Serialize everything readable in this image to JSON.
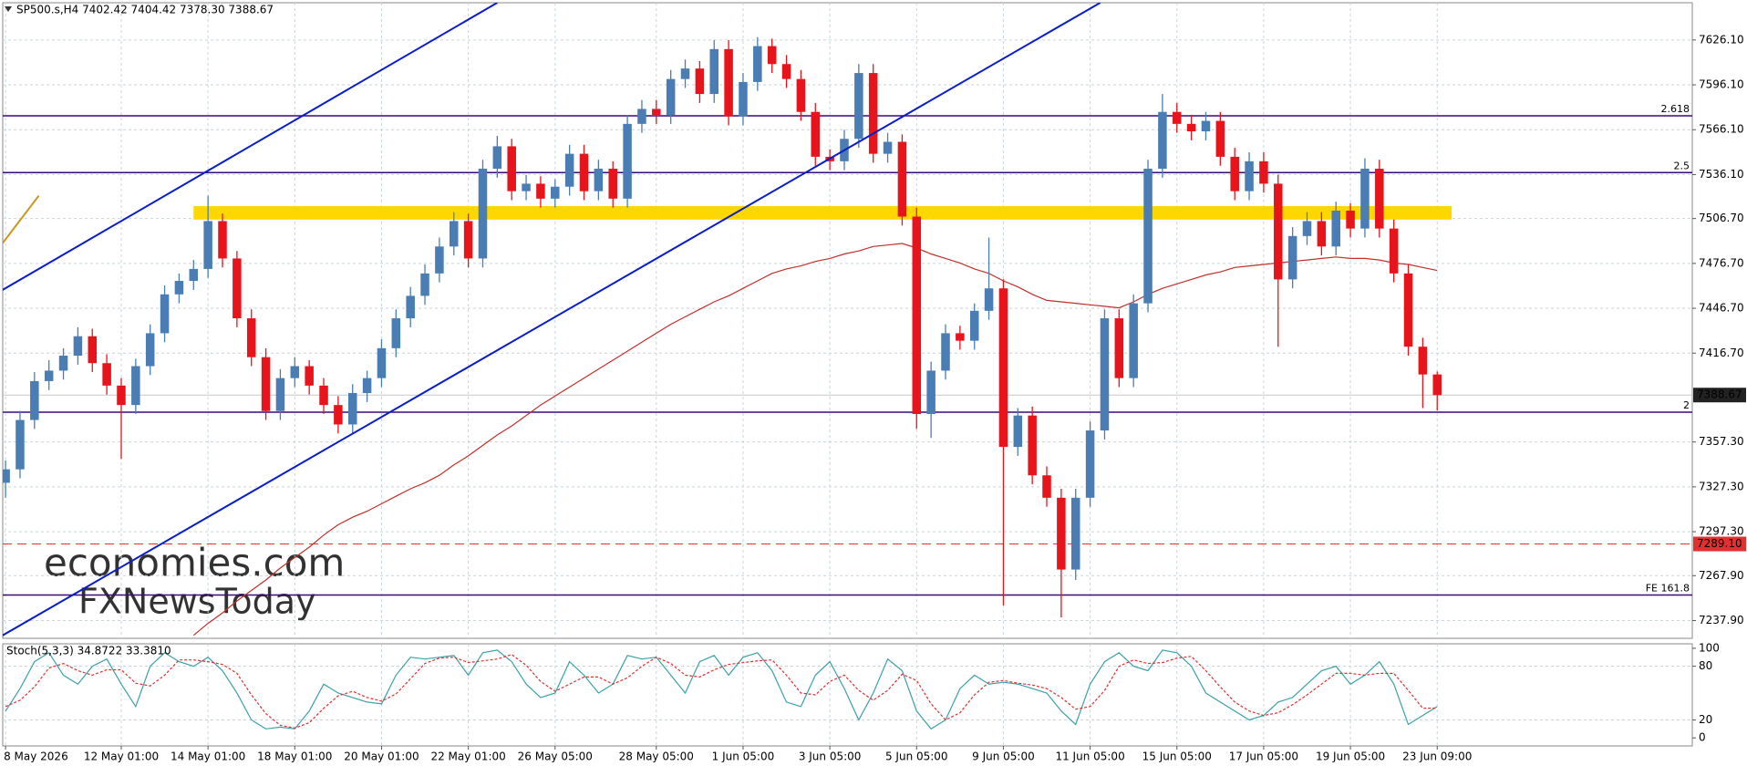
{
  "chart_data": {
    "type": "candlestick",
    "title": "SP500.s,H4  7402.42 7404.42 7378.30 7388.67",
    "categories": [
      "8 May 2026",
      null,
      null,
      null,
      null,
      null,
      null,
      null,
      "12 May 01:00",
      null,
      null,
      null,
      null,
      null,
      "14 May 01:00",
      null,
      null,
      null,
      null,
      null,
      "18 May 01:00",
      null,
      null,
      null,
      null,
      null,
      "20 May 01:00",
      null,
      null,
      null,
      null,
      null,
      "22 May 01:00",
      null,
      null,
      null,
      null,
      null,
      "26 May 05:00",
      null,
      null,
      null,
      null,
      null,
      null,
      "28 May 05:00",
      null,
      null,
      null,
      null,
      null,
      "1 Jun 05:00",
      null,
      null,
      null,
      null,
      null,
      "3 Jun 05:00",
      null,
      null,
      null,
      null,
      null,
      "5 Jun 05:00",
      null,
      null,
      null,
      null,
      null,
      "9 Jun 05:00",
      null,
      null,
      null,
      null,
      null,
      "11 Jun 05:00",
      null,
      null,
      null,
      null,
      null,
      "15 Jun 05:00",
      null,
      null,
      null,
      null,
      null,
      "17 Jun 05:00",
      null,
      null,
      null,
      null,
      null,
      "19 Jun 05:00",
      null,
      null,
      null,
      null,
      null,
      "23 Jun 09:00"
    ],
    "up_color": "#4a7db4",
    "down_color": "#e8141c",
    "open": [
      7330,
      7339,
      7372,
      7398,
      7405,
      7415,
      7428,
      7410,
      7395,
      7382,
      7408,
      7430,
      7456,
      7465,
      7473,
      7505,
      7480,
      7440,
      7414,
      7378,
      7400,
      7408,
      7395,
      7382,
      7369,
      7390,
      7400,
      7420,
      7440,
      7455,
      7470,
      7488,
      7505,
      7480,
      7540,
      7555,
      7525,
      7530,
      7520,
      7528,
      7550,
      7525,
      7540,
      7520,
      7570,
      7580,
      7576,
      7600,
      7607,
      7590,
      7620,
      7575,
      7598,
      7622,
      7610,
      7600,
      7578,
      7548,
      7545,
      7560,
      7604,
      7550,
      7558,
      7508,
      7376,
      7405,
      7430,
      7425,
      7445,
      7460,
      7354,
      7375,
      7335,
      7320,
      7272,
      7320,
      7365,
      7440,
      7400,
      7450,
      7540,
      7578,
      7570,
      7565,
      7572,
      7548,
      7525,
      7545,
      7530,
      7466,
      7495,
      7505,
      7488,
      7512,
      7500,
      7540,
      7500,
      7470,
      7421,
      7402.42
    ],
    "high": [
      7345,
      7378,
      7404,
      7412,
      7420,
      7434,
      7433,
      7416,
      7400,
      7413,
      7436,
      7462,
      7470,
      7479,
      7522,
      7510,
      7485,
      7446,
      7420,
      7406,
      7414,
      7412,
      7400,
      7388,
      7396,
      7405,
      7426,
      7446,
      7461,
      7476,
      7494,
      7511,
      7510,
      7546,
      7562,
      7560,
      7536,
      7535,
      7533,
      7556,
      7556,
      7546,
      7545,
      7576,
      7586,
      7586,
      7606,
      7613,
      7612,
      7626,
      7626,
      7604,
      7628,
      7627,
      7616,
      7606,
      7584,
      7553,
      7566,
      7610,
      7610,
      7564,
      7563,
      7514,
      7411,
      7436,
      7435,
      7450,
      7494,
      7466,
      7380,
      7381,
      7341,
      7326,
      7326,
      7371,
      7446,
      7446,
      7456,
      7546,
      7590,
      7584,
      7576,
      7578,
      7578,
      7554,
      7551,
      7551,
      7536,
      7501,
      7511,
      7511,
      7518,
      7517,
      7547,
      7546,
      7506,
      7476,
      7427,
      7404.42
    ],
    "low": [
      7320,
      7333,
      7366,
      7392,
      7399,
      7409,
      7404,
      7389,
      7346,
      7376,
      7402,
      7424,
      7450,
      7459,
      7467,
      7474,
      7434,
      7408,
      7372,
      7372,
      7394,
      7389,
      7376,
      7363,
      7363,
      7384,
      7394,
      7414,
      7434,
      7449,
      7464,
      7482,
      7474,
      7474,
      7534,
      7519,
      7519,
      7514,
      7514,
      7522,
      7519,
      7519,
      7514,
      7514,
      7564,
      7570,
      7570,
      7594,
      7584,
      7584,
      7569,
      7569,
      7592,
      7604,
      7594,
      7572,
      7542,
      7539,
      7539,
      7554,
      7544,
      7544,
      7502,
      7366,
      7360,
      7399,
      7419,
      7419,
      7439,
      7248,
      7348,
      7329,
      7314,
      7240,
      7265,
      7314,
      7359,
      7394,
      7394,
      7444,
      7534,
      7564,
      7559,
      7559,
      7542,
      7519,
      7519,
      7524,
      7421,
      7460,
      7489,
      7482,
      7482,
      7494,
      7494,
      7494,
      7464,
      7415,
      7380,
      7378.3
    ],
    "close": [
      7339,
      7372,
      7398,
      7405,
      7415,
      7428,
      7410,
      7395,
      7382,
      7408,
      7430,
      7456,
      7465,
      7473,
      7505,
      7480,
      7440,
      7414,
      7378,
      7400,
      7408,
      7395,
      7382,
      7369,
      7390,
      7400,
      7420,
      7440,
      7455,
      7470,
      7488,
      7505,
      7480,
      7540,
      7555,
      7525,
      7530,
      7520,
      7528,
      7550,
      7525,
      7540,
      7520,
      7570,
      7580,
      7576,
      7600,
      7607,
      7590,
      7620,
      7575,
      7598,
      7622,
      7610,
      7600,
      7578,
      7548,
      7545,
      7560,
      7604,
      7550,
      7558,
      7508,
      7376,
      7405,
      7430,
      7425,
      7445,
      7460,
      7354,
      7375,
      7335,
      7320,
      7272,
      7320,
      7365,
      7440,
      7400,
      7450,
      7540,
      7578,
      7570,
      7565,
      7572,
      7548,
      7525,
      7545,
      7530,
      7466,
      7495,
      7505,
      7488,
      7512,
      7500,
      7540,
      7500,
      7470,
      7421,
      7402.42,
      7388.67
    ],
    "moving_average": {
      "color": "#c0302a",
      "values": [
        null,
        null,
        null,
        null,
        null,
        null,
        null,
        null,
        null,
        null,
        null,
        null,
        null,
        7228,
        7236,
        7243,
        7251,
        7258,
        7265,
        7273,
        7280,
        7287,
        7295,
        7302,
        7307,
        7311,
        7316,
        7321,
        7326,
        7330,
        7335,
        7342,
        7348,
        7355,
        7362,
        7368,
        7375,
        7382,
        7388,
        7394,
        7400,
        7406,
        7412,
        7418,
        7424,
        7430,
        7436,
        7441,
        7446,
        7451,
        7455,
        7460,
        7465,
        7470,
        7473,
        7475,
        7478,
        7480,
        7483,
        7485,
        7488,
        7489,
        7490,
        7487,
        7483,
        7480,
        7477,
        7473,
        7470,
        7465,
        7461,
        7456,
        7452,
        7451,
        7450,
        7449,
        7448,
        7447,
        7451,
        7456,
        7460,
        7463,
        7466,
        7469,
        7471,
        7474,
        7475,
        7476,
        7477,
        7478,
        7479,
        7480,
        7481,
        7480,
        7480,
        7479,
        7477,
        7476,
        7474,
        7472
      ]
    },
    "ylim": [
      7226,
      7651
    ],
    "yticks": [
      {
        "value": 7626.1,
        "label": "7626.10"
      },
      {
        "value": 7596.1,
        "label": "7596.10"
      },
      {
        "value": 7566.1,
        "label": "7566.10"
      },
      {
        "value": 7536.1,
        "label": "7536.10"
      },
      {
        "value": 7506.7,
        "label": "7506.70"
      },
      {
        "value": 7476.7,
        "label": "7476.70"
      },
      {
        "value": 7446.7,
        "label": "7446.70"
      },
      {
        "value": 7416.7,
        "label": "7416.70"
      },
      {
        "value": 7357.3,
        "label": "7357.30"
      },
      {
        "value": 7327.3,
        "label": "7327.30"
      },
      {
        "value": 7297.3,
        "label": "7297.30"
      },
      {
        "value": 7267.9,
        "label": "7267.90"
      },
      {
        "value": 7237.9,
        "label": "7237.90"
      }
    ],
    "grid": true,
    "levels": [
      {
        "label": "2.618",
        "value": 7575.4,
        "color": "#3a0a7a"
      },
      {
        "label": "2.5",
        "value": 7537.4,
        "color": "#3a0a7a"
      },
      {
        "label": "2",
        "value": 7377.2,
        "color": "#3a0a7a"
      },
      {
        "label": "FE 161.8",
        "value": 7255,
        "color": "#3a0a7a"
      }
    ],
    "price_lines": [
      {
        "value": 7388.67,
        "label": "7388.67",
        "color": "#222222",
        "dashed": false
      },
      {
        "value": 7289.1,
        "label": "7289.10",
        "color": "#e03030",
        "dashed": true
      }
    ],
    "zones": [
      {
        "from": 7506,
        "to": 7515,
        "start": 13,
        "end": 100,
        "color": "#ffd700"
      }
    ],
    "trendlines": [
      {
        "color": "#0a1ec8",
        "points": [
          [
            0,
            7458
          ],
          [
            34,
            7651
          ]
        ]
      },
      {
        "color": "#0a1ec8",
        "points": [
          [
            0,
            7227
          ],
          [
            75.7,
            7651
          ]
        ]
      },
      {
        "color": "#c8961e",
        "points": [
          [
            0,
            7488
          ],
          [
            2.3,
            7522
          ]
        ]
      }
    ],
    "watermark": [
      "economies.com",
      "FXNewsToday"
    ],
    "stochastic": {
      "label": "Stoch(5,3,3) 34.8722 33.3810",
      "ylim": [
        -9,
        105
      ],
      "yticks": [
        100,
        80,
        20,
        0
      ],
      "main": {
        "color": "#3aa0a8",
        "values": [
          30,
          55,
          85,
          95,
          70,
          60,
          80,
          88,
          60,
          35,
          80,
          95,
          85,
          80,
          90,
          75,
          50,
          20,
          10,
          12,
          10,
          30,
          60,
          50,
          45,
          40,
          38,
          70,
          90,
          88,
          90,
          92,
          70,
          95,
          98,
          85,
          60,
          45,
          50,
          85,
          70,
          50,
          60,
          92,
          88,
          90,
          70,
          50,
          85,
          92,
          70,
          90,
          95,
          75,
          40,
          35,
          70,
          85,
          55,
          20,
          50,
          88,
          75,
          30,
          10,
          20,
          55,
          70,
          60,
          62,
          60,
          55,
          50,
          30,
          15,
          60,
          85,
          95,
          80,
          75,
          98,
          95,
          80,
          50,
          40,
          30,
          20,
          25,
          40,
          45,
          60,
          75,
          80,
          60,
          70,
          85,
          60,
          15,
          25,
          34.8722
        ]
      },
      "signal": {
        "color": "#e03030",
        "values": [
          35,
          42,
          57,
          78,
          83,
          75,
          70,
          76,
          76,
          61,
          58,
          70,
          87,
          87,
          85,
          82,
          72,
          48,
          27,
          14,
          11,
          17,
          33,
          47,
          52,
          45,
          41,
          49,
          66,
          83,
          89,
          90,
          84,
          86,
          88,
          93,
          81,
          63,
          52,
          60,
          68,
          68,
          60,
          67,
          80,
          90,
          83,
          70,
          68,
          76,
          82,
          84,
          86,
          87,
          70,
          50,
          48,
          63,
          70,
          53,
          42,
          53,
          71,
          64,
          38,
          20,
          28,
          48,
          62,
          64,
          61,
          59,
          55,
          45,
          32,
          35,
          53,
          80,
          87,
          83,
          84,
          89,
          91,
          75,
          57,
          40,
          30,
          25,
          28,
          37,
          48,
          60,
          72,
          72,
          70,
          72,
          72,
          53,
          33,
          33.381
        ]
      }
    }
  }
}
